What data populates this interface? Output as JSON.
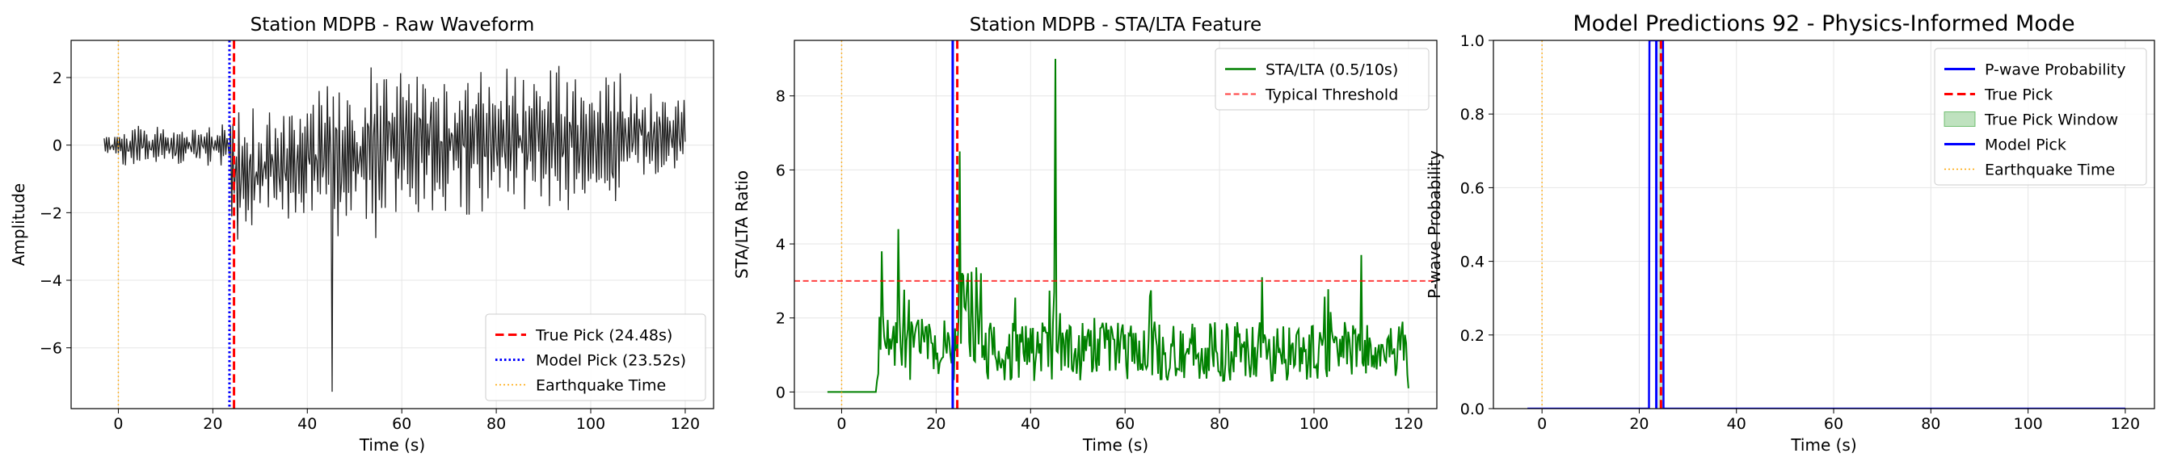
{
  "chart_data": [
    {
      "type": "line",
      "title": "Station MDPB - Raw Waveform",
      "xlabel": "Time (s)",
      "ylabel": "Amplitude",
      "xlim": [
        -10,
        126
      ],
      "ylim": [
        -7.8,
        3.1
      ],
      "xticks": [
        0,
        20,
        40,
        60,
        80,
        100,
        120
      ],
      "yticks": [
        2,
        0,
        -2,
        -4,
        -6
      ],
      "grid": true,
      "legend_position": "lower-right",
      "waveform_color": "#222222",
      "waveform_range": [
        -3,
        120
      ],
      "waveform_spikes": [
        {
          "x": 45.3,
          "y": -7.3
        },
        {
          "x": 53.6,
          "y": 2.3
        }
      ],
      "vlines": [
        {
          "name": "True Pick (24.48s)",
          "x": 24.48,
          "color": "#ff0000",
          "style": "dashed",
          "width": 3
        },
        {
          "name": "Model Pick (23.52s)",
          "x": 23.52,
          "color": "#0000ff",
          "style": "dotted",
          "width": 3
        },
        {
          "name": "Earthquake Time",
          "x": 0,
          "color": "#ffa500",
          "style": "dotted",
          "width": 1.5
        }
      ],
      "hlines": []
    },
    {
      "type": "line",
      "title": "Station MDPB - STA/LTA Feature",
      "xlabel": "Time (s)",
      "ylabel": "STA/LTA Ratio",
      "xlim": [
        -10,
        126
      ],
      "ylim": [
        -0.45,
        9.5
      ],
      "xticks": [
        0,
        20,
        40,
        60,
        80,
        100,
        120
      ],
      "yticks": [
        0,
        2,
        4,
        6,
        8
      ],
      "grid": true,
      "legend_position": "top-right",
      "series": [
        {
          "name": "STA/LTA (0.5/10s)",
          "color": "#008000"
        }
      ],
      "stalta_peaks": [
        {
          "x": 8.6,
          "y": 3.8
        },
        {
          "x": 12.0,
          "y": 4.4
        },
        {
          "x": 24.9,
          "y": 6.5
        },
        {
          "x": 45.2,
          "y": 9.0
        },
        {
          "x": 89.0,
          "y": 3.1
        },
        {
          "x": 110.0,
          "y": 3.7
        }
      ],
      "vlines": [
        {
          "name": "",
          "x": 24.48,
          "color": "#ff0000",
          "style": "dashed",
          "width": 3
        },
        {
          "name": "",
          "x": 23.52,
          "color": "#0000ff",
          "style": "solid",
          "width": 3
        },
        {
          "name": "",
          "x": 0,
          "color": "#ffa500",
          "style": "dotted",
          "width": 1.5
        }
      ],
      "hlines": [
        {
          "name": "Typical Threshold",
          "y": 3.0,
          "color": "#ff0000",
          "style": "dashed",
          "width": 2
        }
      ]
    },
    {
      "type": "line",
      "title": "Model Predictions 92 - Physics-Informed Mode",
      "xlabel": "Time (s)",
      "ylabel": "P-wave Probability",
      "xlim": [
        -10,
        126
      ],
      "ylim": [
        0,
        1
      ],
      "xticks": [
        0,
        20,
        40,
        60,
        80,
        100,
        120
      ],
      "yticks": [
        0.0,
        0.2,
        0.4,
        0.6,
        0.8,
        1.0
      ],
      "grid": true,
      "legend_position": "top-right",
      "series": [
        {
          "name": "P-wave Probability",
          "color": "#0000ff",
          "x": [
            -3,
            22.0,
            22.1,
            24.9,
            25.0,
            120
          ],
          "values": [
            0,
            0,
            1.0,
            1.0,
            0,
            0
          ]
        }
      ],
      "window": {
        "name": "True Pick Window",
        "x0": 23.98,
        "x1": 24.98,
        "color": "#2ca02c"
      },
      "vlines": [
        {
          "name": "True Pick",
          "x": 24.48,
          "color": "#ff0000",
          "style": "dashed",
          "width": 3
        },
        {
          "name": "Model Pick",
          "x": 23.52,
          "color": "#0000ff",
          "style": "solid",
          "width": 3
        },
        {
          "name": "Earthquake Time",
          "x": 0,
          "color": "#ffa500",
          "style": "dotted",
          "width": 1.5
        }
      ],
      "hlines": []
    }
  ]
}
